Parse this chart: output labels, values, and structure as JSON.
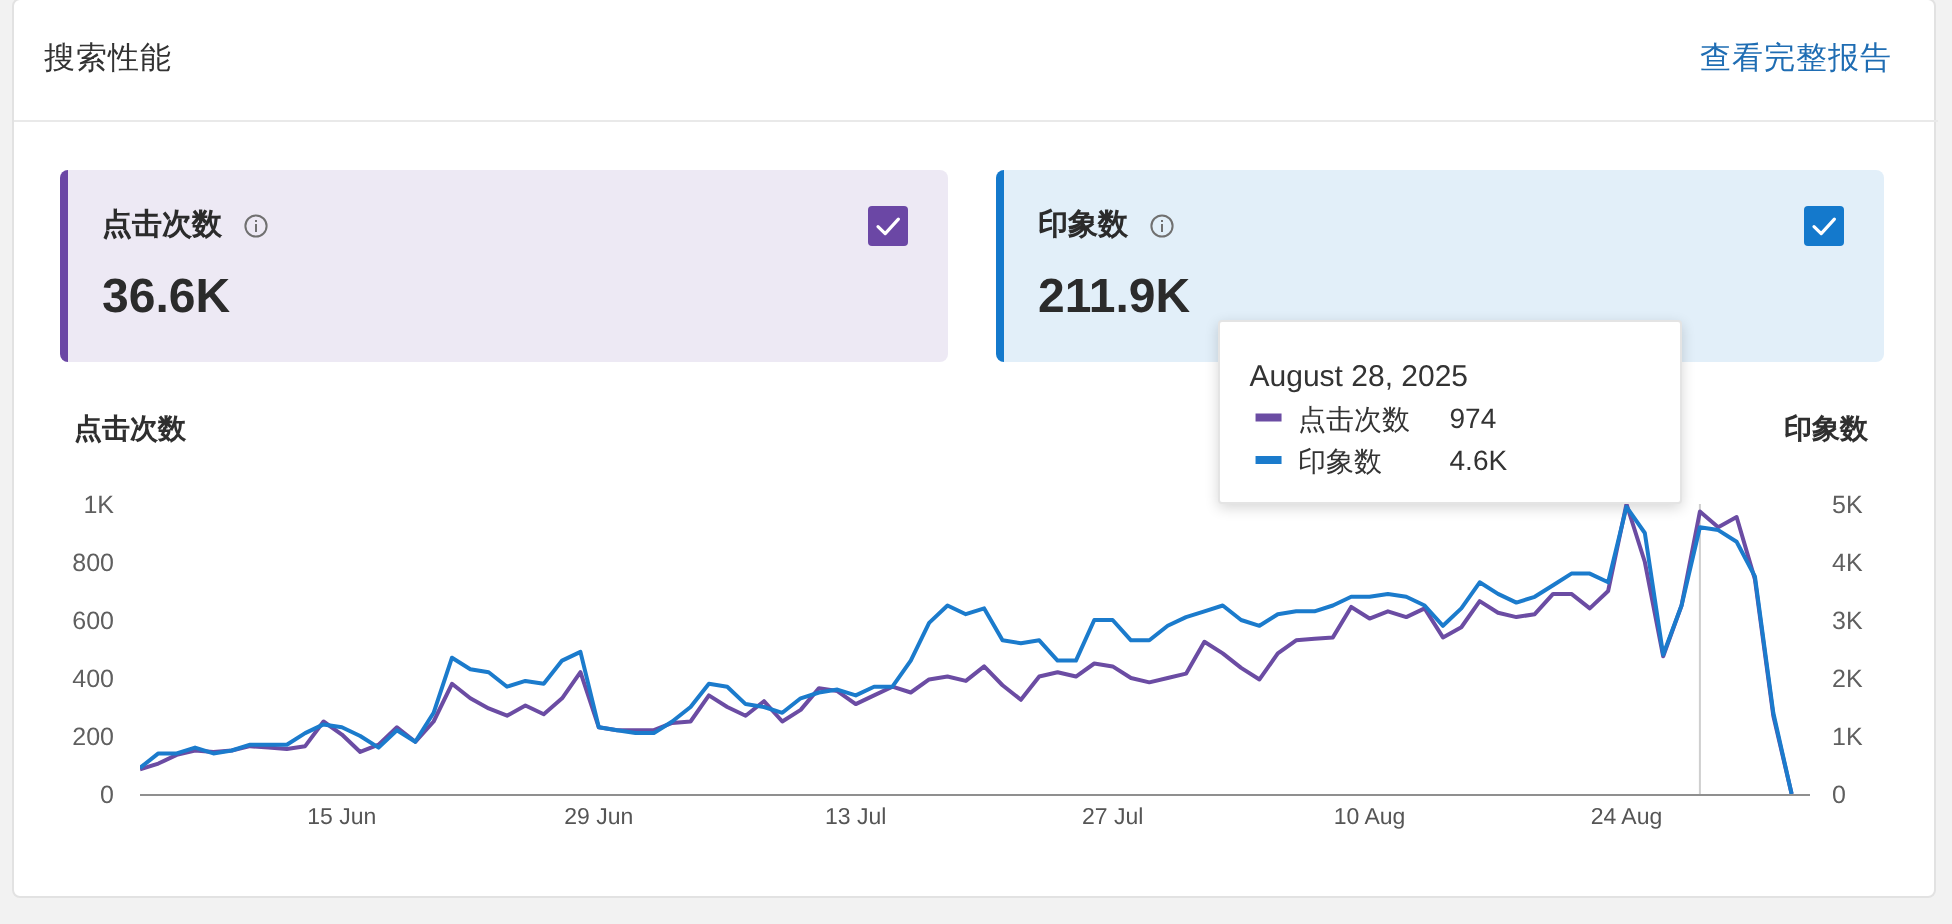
{
  "chart_data": [
    {
      "type": "other",
      "title": "搜索性能",
      "annotations": [
        "查看完整报告"
      ]
    },
    {
      "type": "other",
      "title": "点击次数",
      "annotations": [
        "36.6K"
      ],
      "color": "#6b47a5"
    },
    {
      "type": "other",
      "title": "印象数",
      "annotations": [
        "211.9K"
      ],
      "color": "#1479cc"
    },
    {
      "type": "line",
      "ylabel": "点击次数",
      "y2label": "印象数",
      "legend": "top right",
      "legend_title": "August 28, 2025",
      "annotations": [
        "974",
        "4.6K"
      ],
      "x": [
        "2025-06-04",
        "2025-06-05",
        "2025-06-06",
        "2025-06-07",
        "2025-06-08",
        "2025-06-09",
        "2025-06-10",
        "2025-06-11",
        "2025-06-12",
        "2025-06-13",
        "2025-06-14",
        "2025-06-15",
        "2025-06-16",
        "2025-06-17",
        "2025-06-18",
        "2025-06-19",
        "2025-06-20",
        "2025-06-21",
        "2025-06-22",
        "2025-06-23",
        "2025-06-24",
        "2025-06-25",
        "2025-06-26",
        "2025-06-27",
        "2025-06-28",
        "2025-06-29",
        "2025-06-30",
        "2025-07-01",
        "2025-07-02",
        "2025-07-03",
        "2025-07-04",
        "2025-07-05",
        "2025-07-06",
        "2025-07-07",
        "2025-07-08",
        "2025-07-09",
        "2025-07-10",
        "2025-07-11",
        "2025-07-12",
        "2025-07-13",
        "2025-07-14",
        "2025-07-15",
        "2025-07-16",
        "2025-07-17",
        "2025-07-18",
        "2025-07-19",
        "2025-07-20",
        "2025-07-21",
        "2025-07-22",
        "2025-07-23",
        "2025-07-24",
        "2025-07-25",
        "2025-07-26",
        "2025-07-27",
        "2025-07-28",
        "2025-07-29",
        "2025-07-30",
        "2025-07-31",
        "2025-08-01",
        "2025-08-02",
        "2025-08-03",
        "2025-08-04",
        "2025-08-05",
        "2025-08-06",
        "2025-08-07",
        "2025-08-08",
        "2025-08-09",
        "2025-08-10",
        "2025-08-11",
        "2025-08-12",
        "2025-08-13",
        "2025-08-14",
        "2025-08-15",
        "2025-08-16",
        "2025-08-17",
        "2025-08-18",
        "2025-08-19",
        "2025-08-20",
        "2025-08-21",
        "2025-08-22",
        "2025-08-23",
        "2025-08-24",
        "2025-08-25",
        "2025-08-26",
        "2025-08-27",
        "2025-08-28",
        "2025-08-29",
        "2025-08-30",
        "2025-08-31",
        "2025-09-01",
        "2025-09-02"
      ],
      "series": [
        {
          "name": "点击次数",
          "color": "#6b4ca3",
          "values": [
            85,
            105,
            135,
            150,
            145,
            150,
            165,
            160,
            155,
            165,
            250,
            205,
            145,
            170,
            230,
            180,
            250,
            380,
            330,
            295,
            270,
            305,
            275,
            330,
            420,
            230,
            220,
            220,
            220,
            245,
            250,
            340,
            300,
            270,
            320,
            250,
            290,
            365,
            355,
            310,
            340,
            370,
            350,
            395,
            405,
            390,
            440,
            375,
            325,
            405,
            420,
            405,
            450,
            440,
            400,
            385,
            400,
            415,
            525,
            485,
            435,
            395,
            485,
            530,
            535,
            540,
            645,
            605,
            630,
            610,
            640,
            540,
            575,
            665,
            625,
            610,
            620,
            690,
            690,
            640,
            700,
            1000,
            800,
            475,
            650,
            974,
            920,
            955,
            740,
            270,
            0
          ]
        },
        {
          "name": "印象数",
          "color": "#1b7bcc",
          "axis": "y2",
          "values": [
            450,
            700,
            700,
            800,
            700,
            750,
            850,
            850,
            850,
            1050,
            1200,
            1150,
            1000,
            800,
            1100,
            900,
            1400,
            2350,
            2150,
            2100,
            1850,
            1950,
            1900,
            2300,
            2450,
            1150,
            1100,
            1050,
            1050,
            1250,
            1500,
            1900,
            1850,
            1550,
            1500,
            1400,
            1650,
            1750,
            1800,
            1700,
            1850,
            1850,
            2300,
            2950,
            3250,
            3100,
            3200,
            2650,
            2600,
            2650,
            2300,
            2300,
            3000,
            3000,
            2650,
            2650,
            2900,
            3050,
            3150,
            3250,
            3000,
            2900,
            3100,
            3150,
            3150,
            3250,
            3400,
            3400,
            3450,
            3400,
            3250,
            2900,
            3200,
            3650,
            3450,
            3300,
            3400,
            3600,
            3800,
            3800,
            3650,
            4950,
            4500,
            2400,
            3250,
            4600,
            4550,
            4350,
            3750,
            1400,
            0
          ]
        }
      ],
      "xlim": [
        "2025-06-04",
        "2025-09-03"
      ],
      "xticks": [
        {
          "value": "2025-06-15",
          "label": "15 Jun"
        },
        {
          "value": "2025-06-29",
          "label": "29 Jun"
        },
        {
          "value": "2025-07-13",
          "label": "13 Jul"
        },
        {
          "value": "2025-07-27",
          "label": "27 Jul"
        },
        {
          "value": "2025-08-10",
          "label": "10 Aug"
        },
        {
          "value": "2025-08-24",
          "label": "24 Aug"
        }
      ],
      "ylim": [
        0,
        1000
      ],
      "yticks": [
        0,
        200,
        400,
        600,
        800,
        {
          "value": 1000,
          "label": "1K"
        }
      ],
      "y2lim": [
        0,
        5000
      ],
      "y2ticks": [
        0,
        {
          "value": 1000,
          "label": "1K"
        },
        {
          "value": 2000,
          "label": "2K"
        },
        {
          "value": 3000,
          "label": "3K"
        },
        {
          "value": 4000,
          "label": "4K"
        },
        {
          "value": 5000,
          "label": "5K"
        }
      ],
      "ref_lines": [
        {
          "axis": "x",
          "value": "2025-08-28",
          "color": "#cfcfcf"
        }
      ]
    }
  ]
}
